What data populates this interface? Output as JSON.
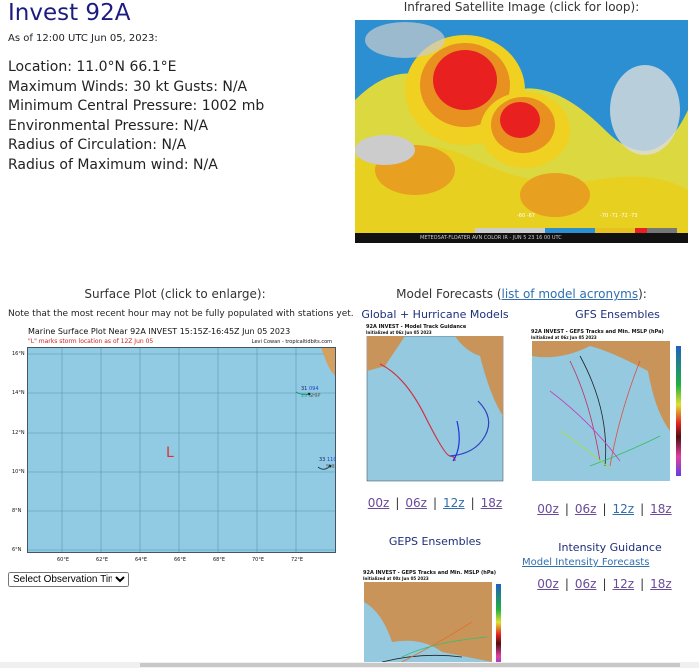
{
  "storm": {
    "title": "Invest 92A",
    "as_of": "As of 12:00 UTC Jun 05, 2023:",
    "info": [
      "Location: 11.0°N 66.1°E",
      "Maximum Winds: 30 kt  Gusts: N/A",
      "Minimum Central Pressure: 1002 mb",
      "Environmental Pressure: N/A",
      "Radius of Circulation: N/A",
      "Radius of Maximum wind: N/A"
    ]
  },
  "satellite": {
    "caption": "Infrared Satellite Image (click for loop):",
    "footer": "METEOSAT-FLOATER AVN COLOR IR - JUN 5 23 16 00 UTC",
    "temps": [
      "-60",
      "-67",
      "-70",
      "-71",
      "-72",
      "-73"
    ]
  },
  "surface": {
    "heading": "Surface Plot (click to enlarge):",
    "note": "Note that the most recent hour may not be fully populated with stations yet.",
    "plot_title": "Marine Surface Plot Near 92A INVEST 15:15Z-16:45Z Jun 05 2023",
    "plot_subtitle": "\"L\" marks storm location as of 12Z Jun 05",
    "credit": "Levi Cowan - tropicaltidbits.com",
    "marker": "L",
    "lat_labels": [
      "16°N",
      "14°N",
      "12°N",
      "10°N",
      "8°N",
      "6°N"
    ],
    "lon_labels": [
      "60°E",
      "62°E",
      "64°E",
      "66°E",
      "68°E",
      "70°E",
      "72°E"
    ],
    "stations": [
      {
        "temp": "31",
        "pressure": "094",
        "dew": "25",
        "id": "SHIP"
      },
      {
        "temp": "33",
        "pressure": "110",
        "id": "SHIP"
      }
    ],
    "select": "Select Observation Time..."
  },
  "models": {
    "heading_pre": "Model Forecasts (",
    "heading_link": "list of model acronyms",
    "heading_post": "):",
    "global": {
      "label": "Global + Hurricane Models",
      "img_title": "92A INVEST - Model Track Guidance",
      "img_sub": "Initialized at 06z Jun 05 2023"
    },
    "gefs": {
      "label": "GFS Ensembles",
      "img_title": "92A INVEST - GEFS Tracks and Min. MSLP (hPa)",
      "img_sub": "Initialized at 06z Jun 05 2023"
    },
    "geps": {
      "label": "GEPS Ensembles",
      "img_title": "92A INVEST - GEPS Tracks and Min. MSLP (hPa)",
      "img_sub": "Initialized at 00z Jun 05 2023"
    },
    "intensity": {
      "label": "Intensity Guidance",
      "link": "Model Intensity Forecasts"
    },
    "cycles": [
      "00z",
      "06z",
      "12z",
      "18z"
    ]
  }
}
